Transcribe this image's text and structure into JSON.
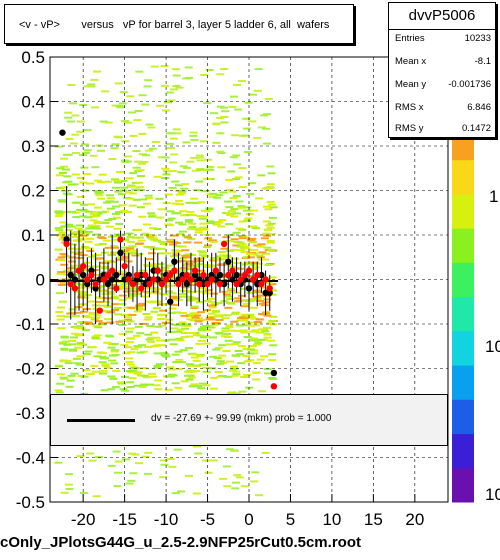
{
  "title": "<v - vP>       versus   vP for barrel 3, layer 5 ladder 6, all  wafers",
  "footer": "cOnly_JPlotsG44G_u_2.5-2.9NFP25rCut0.5cm.root",
  "stats": {
    "name": "dvvP5006",
    "rows": [
      {
        "label": "Entries",
        "value": "10233"
      },
      {
        "label": "Mean x",
        "value": "-8.1"
      },
      {
        "label": "Mean y",
        "value": "-0.001736"
      },
      {
        "label": "RMS x",
        "value": "6.846"
      },
      {
        "label": "RMS y",
        "value": "0.1472"
      }
    ]
  },
  "legend": {
    "text": "dv =  -27.69 +- 99.99 (mkm) prob = 1.000"
  },
  "colorbar": {
    "labels": [
      "1",
      "10",
      "10"
    ]
  },
  "chart_data": {
    "type": "scatter",
    "xlim": [
      -24,
      24
    ],
    "ylim": [
      -0.5,
      0.5
    ],
    "x_ticks": [
      -20,
      -15,
      -10,
      -5,
      0,
      5,
      10,
      15,
      20
    ],
    "y_ticks": [
      -0.5,
      -0.4,
      -0.3,
      -0.2,
      -0.1,
      0,
      0.1,
      0.2,
      0.3,
      0.4,
      0.5
    ],
    "grid": true,
    "density": {
      "x_range": [
        -23,
        3
      ],
      "y_range": [
        -0.5,
        0.5
      ]
    },
    "series": [
      {
        "color": "#000000",
        "points": [
          {
            "x": -22.5,
            "y": 0.33,
            "e": 0.0
          },
          {
            "x": -22.0,
            "y": 0.09,
            "e": 0.12
          },
          {
            "x": -21.5,
            "y": 0.01,
            "e": 0.1
          },
          {
            "x": -21.0,
            "y": 0.0,
            "e": 0.08
          },
          {
            "x": -20.5,
            "y": 0.02,
            "e": 0.09
          },
          {
            "x": -20.0,
            "y": 0.01,
            "e": 0.07
          },
          {
            "x": -19.5,
            "y": -0.01,
            "e": 0.06
          },
          {
            "x": -19.0,
            "y": 0.02,
            "e": 0.05
          },
          {
            "x": -18.5,
            "y": -0.02,
            "e": 0.08
          },
          {
            "x": -18.0,
            "y": 0.0,
            "e": 0.04
          },
          {
            "x": -17.5,
            "y": 0.01,
            "e": 0.06
          },
          {
            "x": -17.0,
            "y": -0.01,
            "e": 0.05
          },
          {
            "x": -16.5,
            "y": 0.0,
            "e": 0.1
          },
          {
            "x": -16.0,
            "y": 0.01,
            "e": 0.04
          },
          {
            "x": -15.5,
            "y": 0.06,
            "e": 0.05
          },
          {
            "x": -15.0,
            "y": 0.0,
            "e": 0.06
          },
          {
            "x": -14.5,
            "y": 0.01,
            "e": 0.05
          },
          {
            "x": -14.0,
            "y": -0.01,
            "e": 0.04
          },
          {
            "x": -13.5,
            "y": 0.0,
            "e": 0.07
          },
          {
            "x": -13.0,
            "y": 0.01,
            "e": 0.05
          },
          {
            "x": -12.5,
            "y": -0.01,
            "e": 0.06
          },
          {
            "x": -12.0,
            "y": 0.0,
            "e": 0.04
          },
          {
            "x": -11.5,
            "y": 0.02,
            "e": 0.05
          },
          {
            "x": -11.0,
            "y": 0.0,
            "e": 0.06
          },
          {
            "x": -10.5,
            "y": -0.01,
            "e": 0.05
          },
          {
            "x": -10.0,
            "y": 0.01,
            "e": 0.04
          },
          {
            "x": -9.5,
            "y": -0.05,
            "e": 0.07
          },
          {
            "x": -9.0,
            "y": 0.04,
            "e": 0.05
          },
          {
            "x": -8.5,
            "y": 0.0,
            "e": 0.06
          },
          {
            "x": -8.0,
            "y": 0.01,
            "e": 0.04
          },
          {
            "x": -7.5,
            "y": -0.01,
            "e": 0.05
          },
          {
            "x": -7.0,
            "y": 0.0,
            "e": 0.06
          },
          {
            "x": -6.5,
            "y": 0.01,
            "e": 0.04
          },
          {
            "x": -6.0,
            "y": 0.0,
            "e": 0.05
          },
          {
            "x": -5.5,
            "y": -0.01,
            "e": 0.06
          },
          {
            "x": -5.0,
            "y": 0.0,
            "e": 0.04
          },
          {
            "x": -4.5,
            "y": 0.01,
            "e": 0.05
          },
          {
            "x": -4.0,
            "y": 0.0,
            "e": 0.06
          },
          {
            "x": -3.5,
            "y": 0.01,
            "e": 0.04
          },
          {
            "x": -3.0,
            "y": -0.01,
            "e": 0.05
          },
          {
            "x": -2.5,
            "y": 0.04,
            "e": 0.06
          },
          {
            "x": -2.0,
            "y": 0.0,
            "e": 0.05
          },
          {
            "x": -1.5,
            "y": 0.01,
            "e": 0.04
          },
          {
            "x": -1.0,
            "y": -0.01,
            "e": 0.05
          },
          {
            "x": -0.5,
            "y": 0.0,
            "e": 0.04
          },
          {
            "x": 0.0,
            "y": -0.02,
            "e": 0.05
          },
          {
            "x": 0.5,
            "y": 0.0,
            "e": 0.04
          },
          {
            "x": 1.0,
            "y": -0.01,
            "e": 0.05
          },
          {
            "x": 1.5,
            "y": 0.01,
            "e": 0.04
          },
          {
            "x": 2.0,
            "y": -0.03,
            "e": 0.05
          },
          {
            "x": 2.5,
            "y": -0.03,
            "e": 0.04
          },
          {
            "x": 3.0,
            "y": -0.21,
            "e": 0.0
          }
        ]
      },
      {
        "color": "#ff0000",
        "points": [
          {
            "x": -22.0,
            "y": 0.08
          },
          {
            "x": -21.5,
            "y": -0.01
          },
          {
            "x": -21.0,
            "y": -0.02
          },
          {
            "x": -20.5,
            "y": 0.02
          },
          {
            "x": -20.0,
            "y": 0.03
          },
          {
            "x": -19.5,
            "y": 0.0
          },
          {
            "x": -19.0,
            "y": 0.01
          },
          {
            "x": -18.5,
            "y": -0.01
          },
          {
            "x": -18.0,
            "y": -0.07
          },
          {
            "x": -17.5,
            "y": 0.0
          },
          {
            "x": -17.0,
            "y": 0.01
          },
          {
            "x": -16.5,
            "y": 0.02
          },
          {
            "x": -16.0,
            "y": -0.02
          },
          {
            "x": -15.5,
            "y": 0.09
          },
          {
            "x": -15.0,
            "y": 0.03
          },
          {
            "x": -14.5,
            "y": 0.0
          },
          {
            "x": -14.0,
            "y": -0.01
          },
          {
            "x": -13.5,
            "y": 0.01
          },
          {
            "x": -13.0,
            "y": -0.02
          },
          {
            "x": -12.5,
            "y": 0.01
          },
          {
            "x": -12.0,
            "y": -0.01
          },
          {
            "x": -11.5,
            "y": 0.0
          },
          {
            "x": -11.0,
            "y": 0.02
          },
          {
            "x": -10.5,
            "y": -0.01
          },
          {
            "x": -10.0,
            "y": 0.0
          },
          {
            "x": -9.5,
            "y": 0.01
          },
          {
            "x": -9.0,
            "y": 0.02
          },
          {
            "x": -8.5,
            "y": -0.01
          },
          {
            "x": -8.0,
            "y": 0.0
          },
          {
            "x": -7.5,
            "y": 0.01
          },
          {
            "x": -7.0,
            "y": 0.0
          },
          {
            "x": -6.5,
            "y": 0.02
          },
          {
            "x": -6.0,
            "y": -0.01
          },
          {
            "x": -5.5,
            "y": 0.01
          },
          {
            "x": -5.0,
            "y": -0.01
          },
          {
            "x": -4.5,
            "y": 0.0
          },
          {
            "x": -4.0,
            "y": 0.02
          },
          {
            "x": -3.5,
            "y": -0.01
          },
          {
            "x": -3.0,
            "y": 0.08
          },
          {
            "x": -2.5,
            "y": 0.01
          },
          {
            "x": -2.0,
            "y": 0.02
          },
          {
            "x": -1.5,
            "y": -0.01
          },
          {
            "x": -1.0,
            "y": 0.0
          },
          {
            "x": -0.5,
            "y": 0.01
          },
          {
            "x": 0.0,
            "y": 0.02
          },
          {
            "x": 0.5,
            "y": 0.0
          },
          {
            "x": 1.0,
            "y": 0.01
          },
          {
            "x": 1.5,
            "y": -0.01
          },
          {
            "x": 2.0,
            "y": 0.0
          },
          {
            "x": 2.5,
            "y": -0.02
          },
          {
            "x": 3.0,
            "y": -0.24
          }
        ]
      }
    ]
  }
}
